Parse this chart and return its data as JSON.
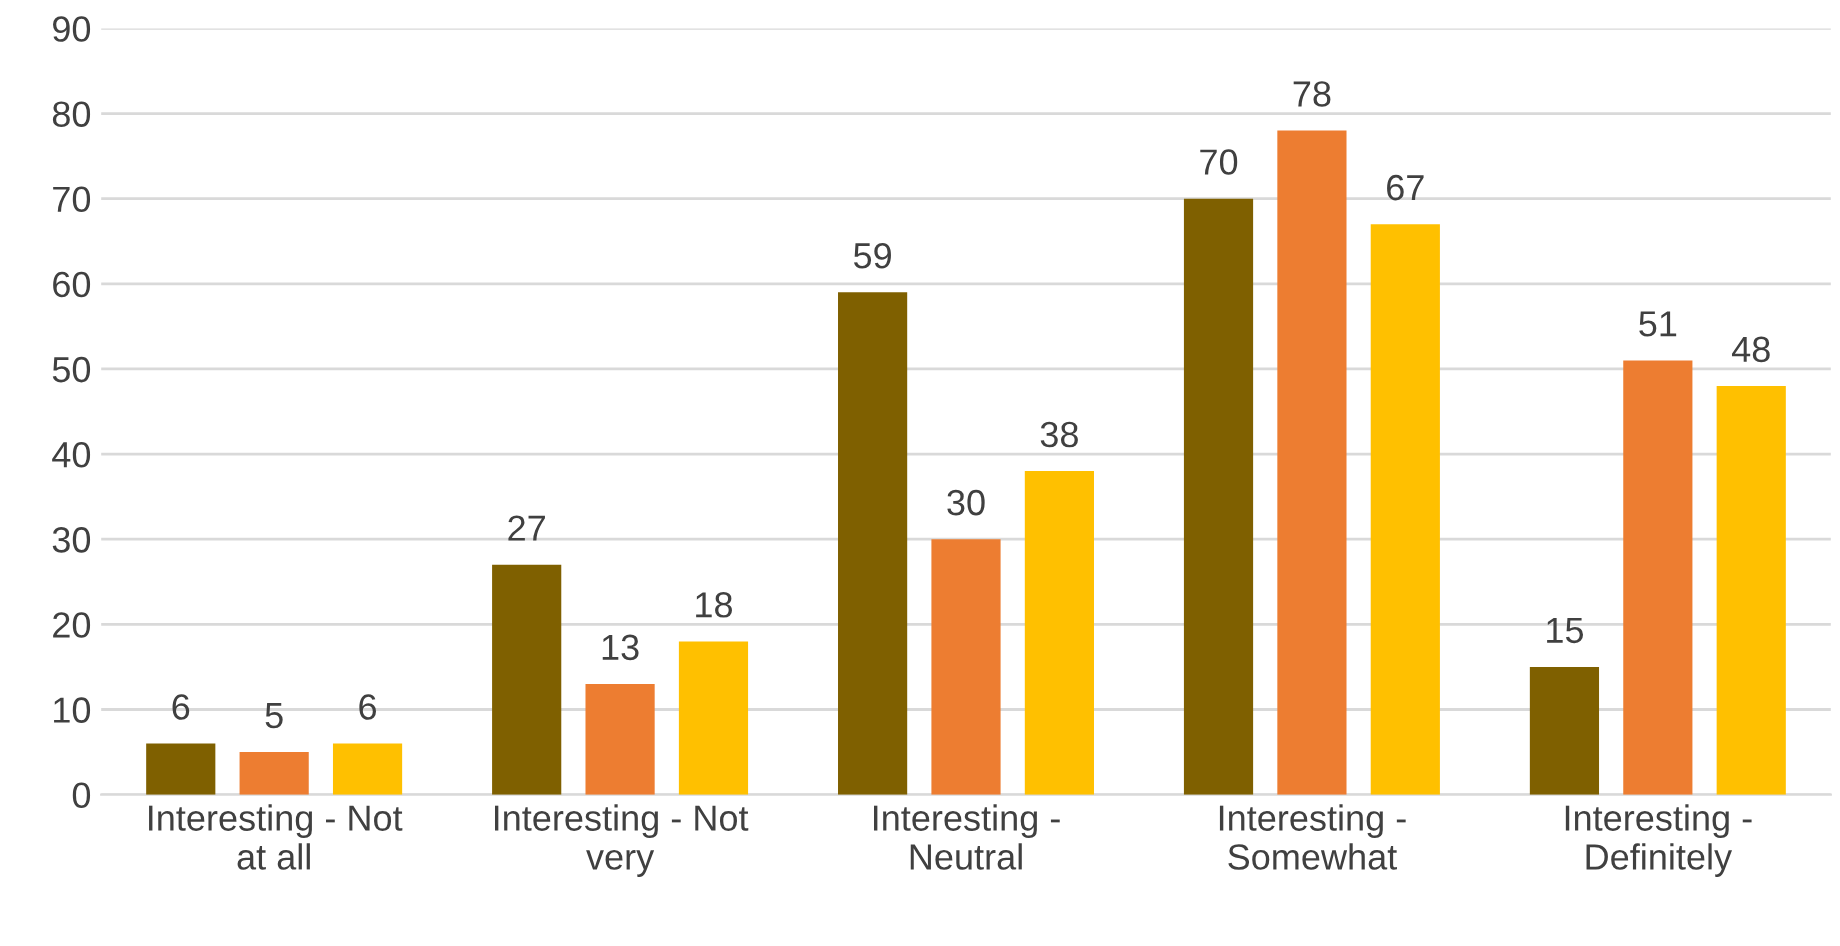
{
  "chart_data": {
    "type": "bar",
    "categories": [
      "Interesting - Not at all",
      "Interesting - Not very",
      "Interesting - Neutral",
      "Interesting - Somewhat",
      "Interesting - Definitely"
    ],
    "series": [
      {
        "color": "#7f6000",
        "values": [
          6,
          27,
          59,
          70,
          15
        ]
      },
      {
        "color": "#ed7d31",
        "values": [
          5,
          13,
          30,
          78,
          51
        ]
      },
      {
        "color": "#ffc000",
        "values": [
          6,
          18,
          38,
          67,
          48
        ]
      }
    ],
    "ylim": [
      0,
      90
    ],
    "yticks": [
      0,
      10,
      20,
      30,
      40,
      50,
      60,
      70,
      80,
      90
    ],
    "grid": "y",
    "data_labels": true
  }
}
